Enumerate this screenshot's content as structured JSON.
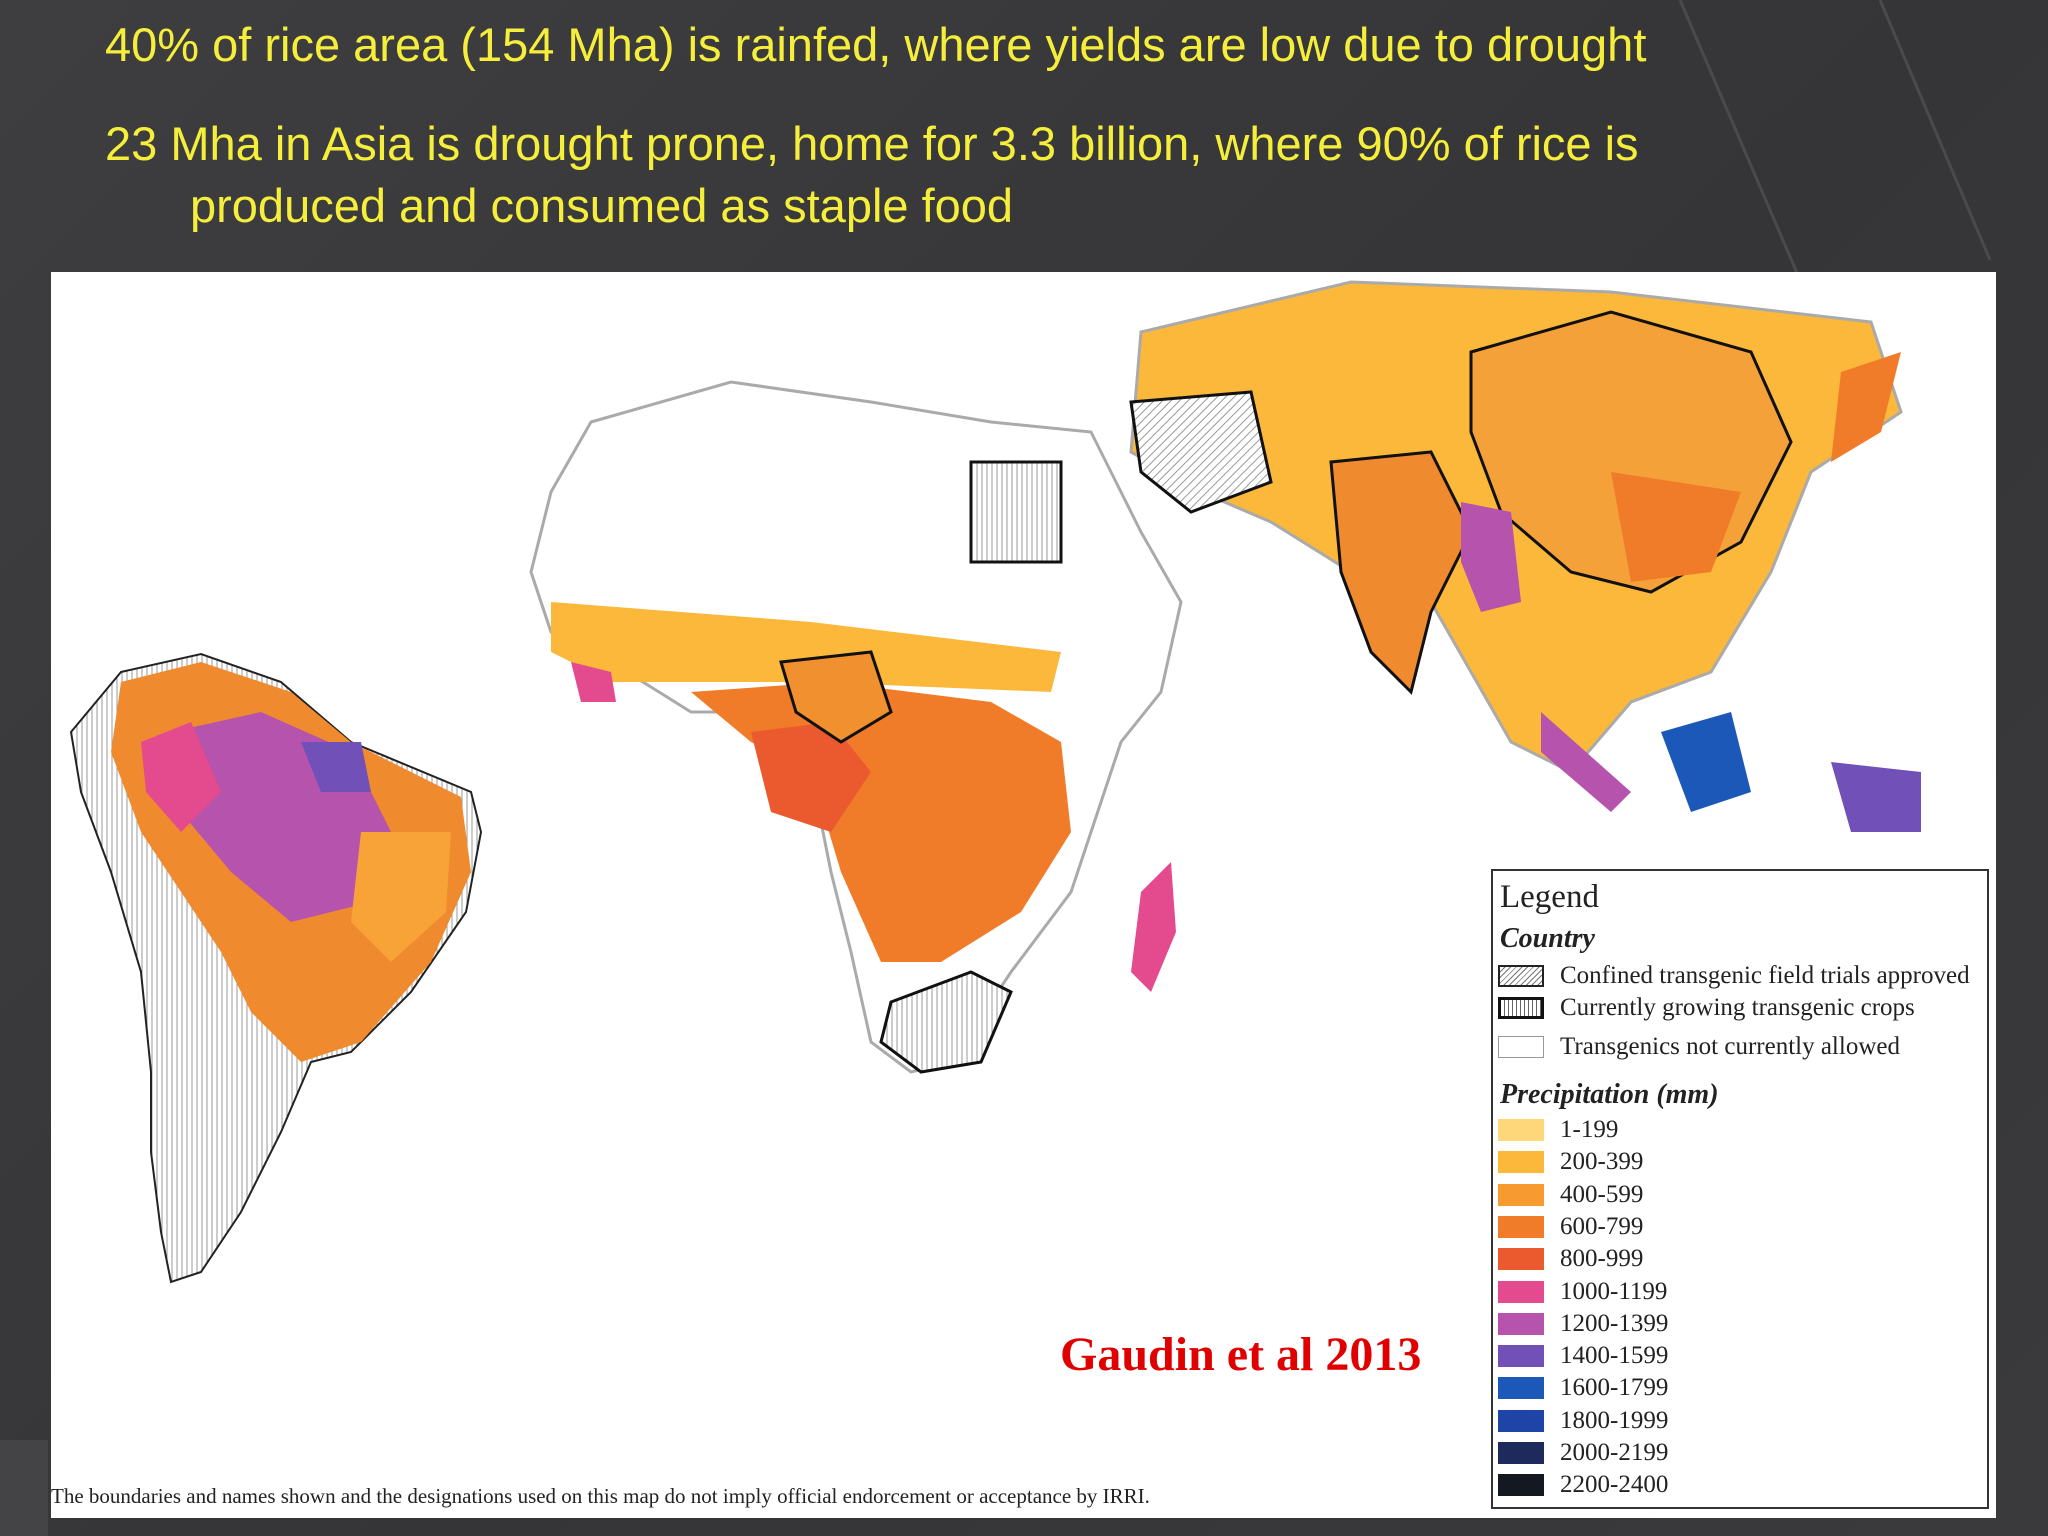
{
  "slide": {
    "heading1": "40% of rice area (154 Mha) is rainfed, where yields are low due to drought",
    "heading2_line1": "23 Mha in Asia is drought prone, home for 3.3 billion, where 90% of rice is",
    "heading2_line2": "produced and consumed as staple food"
  },
  "map": {
    "citation": "Gaudin et al 2013",
    "disclaimer": "The boundaries and names shown and the designations used on this map do not imply official endorcement or acceptance by IRRI.",
    "legend": {
      "title": "Legend",
      "country_title": "Country",
      "country_items": [
        {
          "label": "Confined transgenic field trials approved",
          "pattern": "diagonal-hatch"
        },
        {
          "label": "Currently growing transgenic crops",
          "pattern": "vertical-hatch-bold-border"
        },
        {
          "label": "Transgenics not currently allowed",
          "pattern": "blank"
        }
      ],
      "precip_title": "Precipitation (mm)",
      "precip_items": [
        {
          "label": "1-199",
          "color": "#fdd77a"
        },
        {
          "label": "200-399",
          "color": "#fbb83a"
        },
        {
          "label": "400-599",
          "color": "#f79a30"
        },
        {
          "label": "600-799",
          "color": "#f07c2a"
        },
        {
          "label": "800-999",
          "color": "#ea5a2e"
        },
        {
          "label": "1000-1199",
          "color": "#e44b8e"
        },
        {
          "label": "1200-1399",
          "color": "#b553ad"
        },
        {
          "label": "1400-1599",
          "color": "#7150b8"
        },
        {
          "label": "1600-1799",
          "color": "#1c58b8"
        },
        {
          "label": "1800-1999",
          "color": "#1d44a6"
        },
        {
          "label": "2000-2199",
          "color": "#1f2a5c"
        },
        {
          "label": "2200-2400",
          "color": "#141820"
        }
      ]
    }
  }
}
